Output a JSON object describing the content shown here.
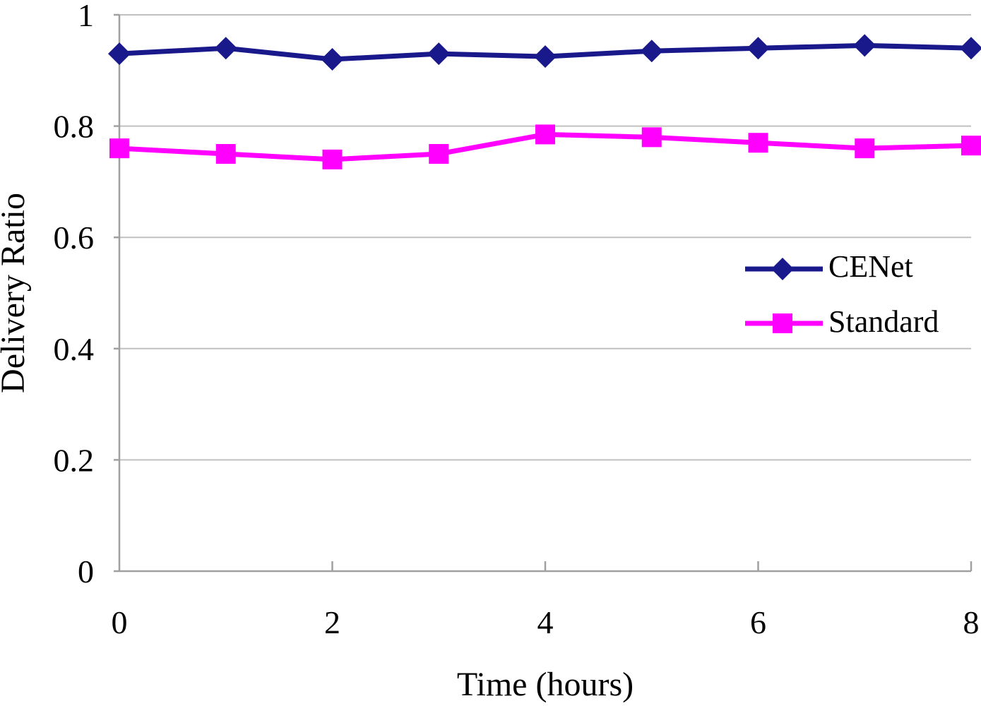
{
  "chart_data": {
    "type": "line",
    "title": "",
    "xlabel": "Time (hours)",
    "ylabel": "Delivery Ratio",
    "xlim": [
      0,
      8
    ],
    "ylim": [
      0,
      1
    ],
    "grid": "horizontal-gridlines",
    "x_ticks": [
      {
        "value": 0,
        "label": "0"
      },
      {
        "value": 2,
        "label": "2"
      },
      {
        "value": 4,
        "label": "4"
      },
      {
        "value": 6,
        "label": "6"
      },
      {
        "value": 8,
        "label": "8"
      }
    ],
    "y_ticks": [
      {
        "value": 0,
        "label": "0"
      },
      {
        "value": 0.2,
        "label": "0.2"
      },
      {
        "value": 0.4,
        "label": "0.4"
      },
      {
        "value": 0.6,
        "label": "0.6"
      },
      {
        "value": 0.8,
        "label": "0.8"
      },
      {
        "value": 1,
        "label": "1"
      }
    ],
    "x": [
      0,
      1,
      2,
      3,
      4,
      5,
      6,
      7,
      8
    ],
    "series": [
      {
        "name": "CENet",
        "marker": "diamond",
        "color": "#19198C",
        "values": [
          0.93,
          0.94,
          0.92,
          0.93,
          0.925,
          0.935,
          0.94,
          0.945,
          0.94
        ]
      },
      {
        "name": "Standard",
        "marker": "square",
        "color": "#FF00FF",
        "values": [
          0.76,
          0.75,
          0.74,
          0.75,
          0.785,
          0.78,
          0.77,
          0.76,
          0.765
        ]
      }
    ],
    "legend": {
      "position": "inside-right"
    }
  },
  "colors": {
    "grid": "#C0C0C0",
    "axis": "#A0A0A0",
    "text": "#000000",
    "background": "#FFFFFF"
  }
}
